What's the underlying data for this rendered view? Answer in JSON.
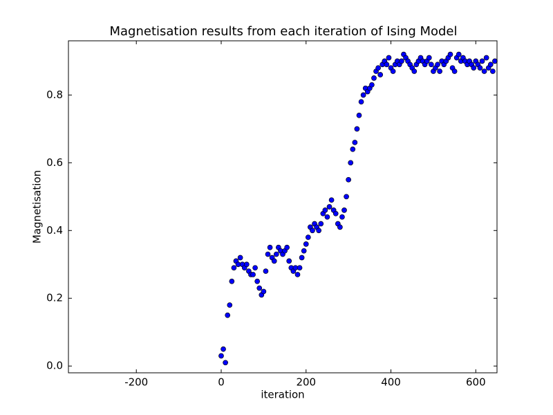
{
  "chart_data": {
    "type": "scatter",
    "title": "Magnetisation results from each iteration of Ising Model",
    "xlabel": "iteration",
    "ylabel": "Magnetisation",
    "series": [
      {
        "name": "Magnetisation",
        "color": "#0000ff",
        "x": [
          0,
          5,
          10,
          15,
          20,
          25,
          30,
          35,
          40,
          45,
          50,
          55,
          60,
          65,
          70,
          75,
          80,
          85,
          90,
          95,
          100,
          105,
          110,
          115,
          120,
          125,
          130,
          135,
          140,
          145,
          150,
          155,
          160,
          165,
          170,
          175,
          180,
          185,
          190,
          195,
          200,
          205,
          210,
          215,
          220,
          225,
          230,
          235,
          240,
          245,
          250,
          255,
          260,
          265,
          270,
          275,
          280,
          285,
          290,
          295,
          300,
          305,
          310,
          315,
          320,
          325,
          330,
          335,
          340,
          345,
          350,
          355,
          360,
          365,
          370,
          375,
          380,
          385,
          390,
          395,
          400,
          405,
          410,
          415,
          420,
          425,
          430,
          435,
          440,
          445,
          450,
          455,
          460,
          465,
          470,
          475,
          480,
          485,
          490,
          495,
          500,
          505,
          510,
          515,
          520,
          525,
          530,
          535,
          540,
          545,
          550,
          555,
          560,
          565,
          570,
          575,
          580,
          585,
          590,
          595,
          600,
          605,
          610,
          615,
          620,
          625,
          630,
          635,
          640,
          645
        ],
        "values": [
          0.03,
          0.05,
          0.01,
          0.15,
          0.18,
          0.25,
          0.29,
          0.31,
          0.3,
          0.32,
          0.3,
          0.29,
          0.3,
          0.28,
          0.27,
          0.27,
          0.29,
          0.25,
          0.23,
          0.21,
          0.22,
          0.28,
          0.33,
          0.35,
          0.32,
          0.31,
          0.33,
          0.35,
          0.34,
          0.33,
          0.34,
          0.35,
          0.31,
          0.29,
          0.28,
          0.29,
          0.27,
          0.29,
          0.32,
          0.34,
          0.36,
          0.38,
          0.41,
          0.4,
          0.42,
          0.41,
          0.4,
          0.42,
          0.45,
          0.46,
          0.44,
          0.47,
          0.49,
          0.46,
          0.45,
          0.42,
          0.41,
          0.44,
          0.46,
          0.5,
          0.55,
          0.6,
          0.64,
          0.66,
          0.7,
          0.74,
          0.78,
          0.8,
          0.82,
          0.81,
          0.82,
          0.83,
          0.85,
          0.87,
          0.88,
          0.86,
          0.89,
          0.9,
          0.89,
          0.91,
          0.88,
          0.87,
          0.89,
          0.9,
          0.89,
          0.9,
          0.92,
          0.91,
          0.9,
          0.89,
          0.88,
          0.87,
          0.89,
          0.9,
          0.91,
          0.9,
          0.89,
          0.9,
          0.91,
          0.89,
          0.87,
          0.88,
          0.89,
          0.87,
          0.9,
          0.89,
          0.9,
          0.91,
          0.92,
          0.88,
          0.87,
          0.91,
          0.92,
          0.9,
          0.91,
          0.9,
          0.89,
          0.9,
          0.89,
          0.88,
          0.9,
          0.89,
          0.88,
          0.9,
          0.87,
          0.91,
          0.88,
          0.89,
          0.87,
          0.9
        ]
      }
    ],
    "xlim": [
      -360,
      650
    ],
    "xticks": [
      -200,
      0,
      200,
      400,
      600
    ],
    "ylim": [
      -0.02,
      0.96
    ],
    "yticks": [
      {
        "value": 0,
        "label": "0.0"
      },
      0.2,
      0.4,
      0.6,
      0.8
    ],
    "grid": false
  }
}
